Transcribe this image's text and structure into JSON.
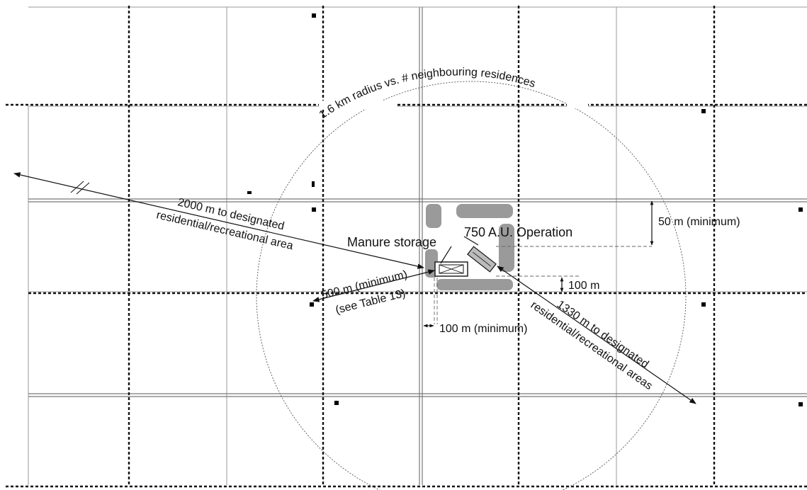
{
  "diagram": {
    "radius_label": "1.6 km  radius vs. # neighbouring residences",
    "operation_label": "750 A.U. Operation",
    "manure_label": "Manure storage",
    "dist_2000_line1": "2000 m to designated",
    "dist_2000_line2": "residential/recreational area",
    "dist_500_line1": "500 m (minimum)",
    "dist_500_line2": "(see Table 13)",
    "dist_1330_line1": "1330 m to designated",
    "dist_1330_line2": "residential/recreational areas",
    "setback_50": "50 m (minimum)",
    "setback_100": "100 m",
    "setback_100_min": "100 m (minimum)"
  },
  "colors": {
    "yard": "#9a9a9a",
    "ink": "#111111"
  }
}
